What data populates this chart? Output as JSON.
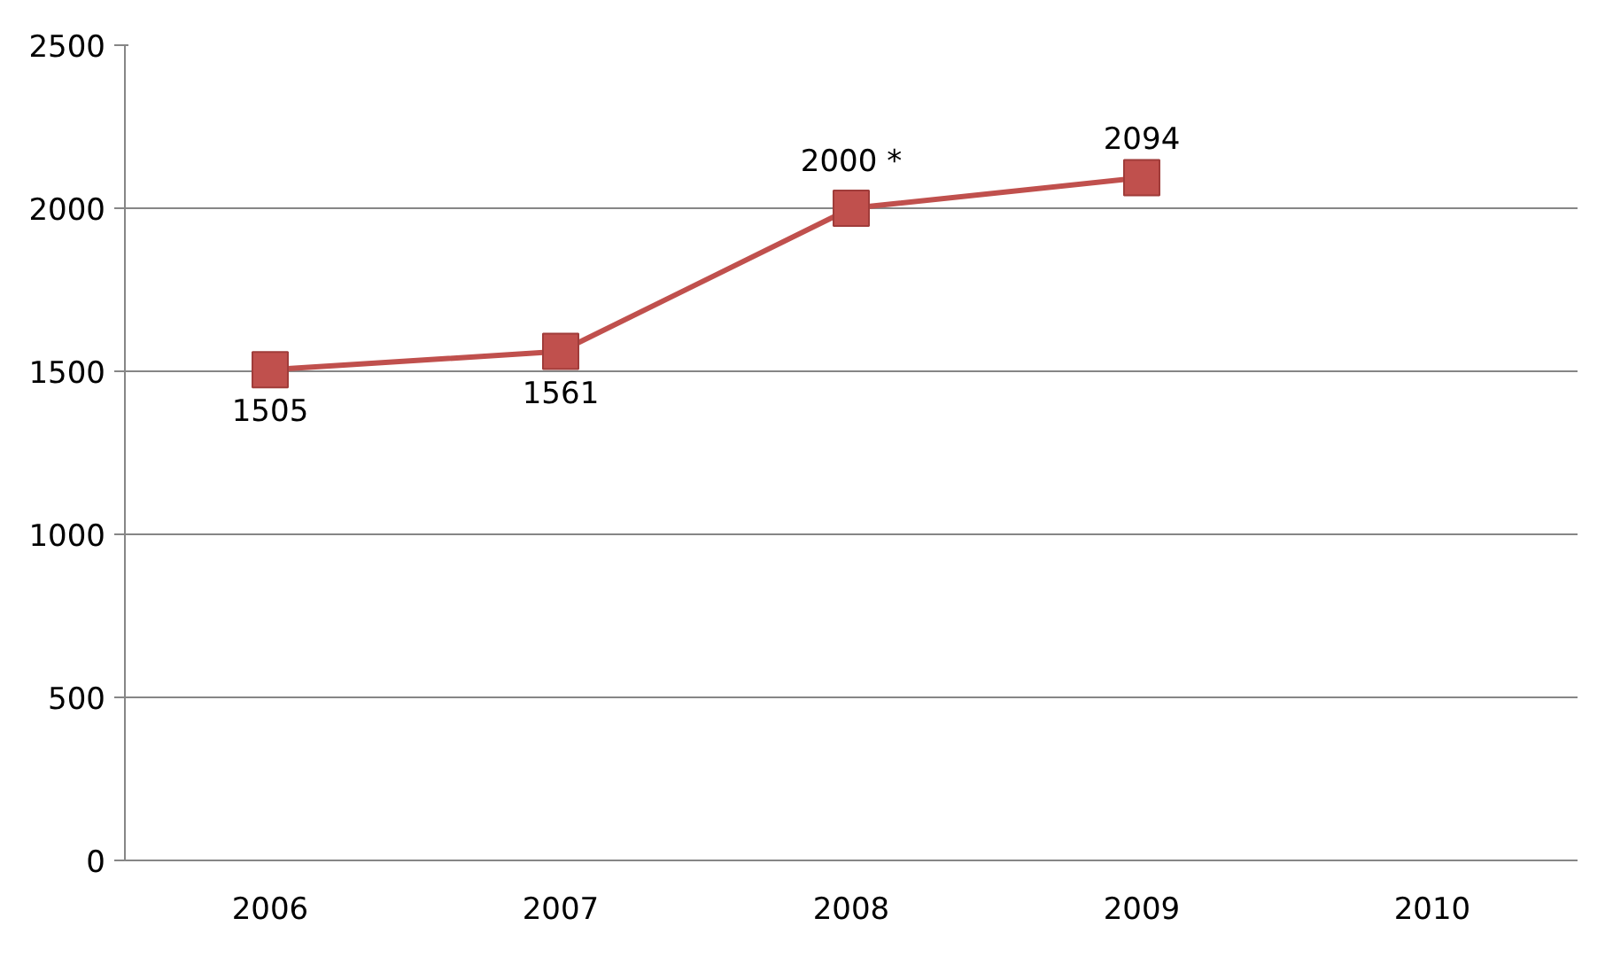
{
  "chart_data": {
    "type": "line",
    "categories": [
      "2006",
      "2007",
      "2008",
      "2009",
      "2010"
    ],
    "series": [
      {
        "color": "#c0504d",
        "values": [
          1505,
          1561,
          2000,
          2094,
          null
        ]
      }
    ],
    "value_labels": [
      "1505",
      "1561",
      "2000 *",
      "2094",
      null
    ],
    "ylim": [
      0,
      2500
    ],
    "yticks": [
      0,
      500,
      1000,
      1500,
      2000,
      2500
    ],
    "grid": "y",
    "marker": "square",
    "line_style": "solid"
  }
}
